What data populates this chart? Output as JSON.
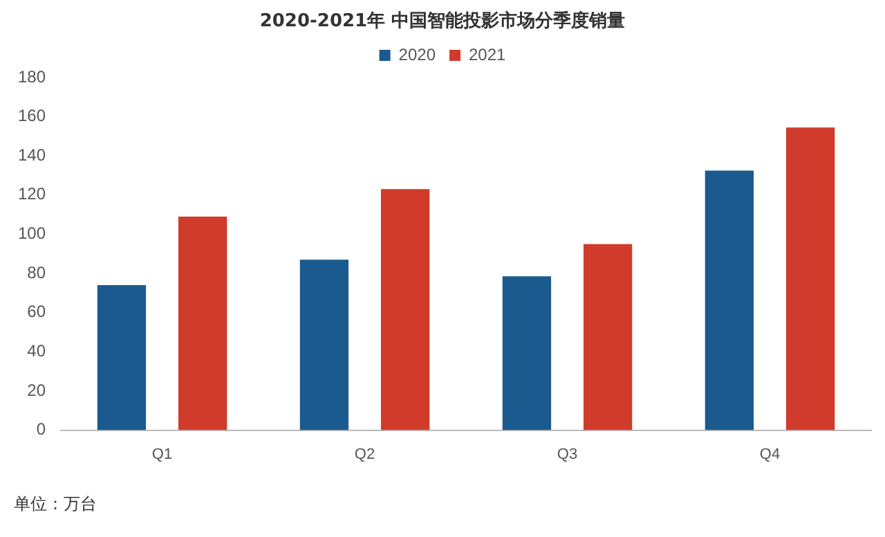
{
  "chart_data": {
    "type": "bar",
    "title": "2020-2021年 中国智能投影市场分季度销量",
    "categories": [
      "Q1",
      "Q2",
      "Q3",
      "Q4"
    ],
    "series": [
      {
        "name": "2020",
        "color": "#1b5a8e",
        "values": [
          74,
          87,
          78.5,
          132.5
        ]
      },
      {
        "name": "2021",
        "color": "#d13b2b",
        "values": [
          109,
          123,
          95,
          154.5
        ]
      }
    ],
    "ylim": [
      0,
      180
    ],
    "yticks": [
      0,
      20,
      40,
      60,
      80,
      100,
      120,
      140,
      160,
      180
    ],
    "grid": false,
    "legend": "top",
    "annotations": [
      "单位：万台"
    ]
  }
}
